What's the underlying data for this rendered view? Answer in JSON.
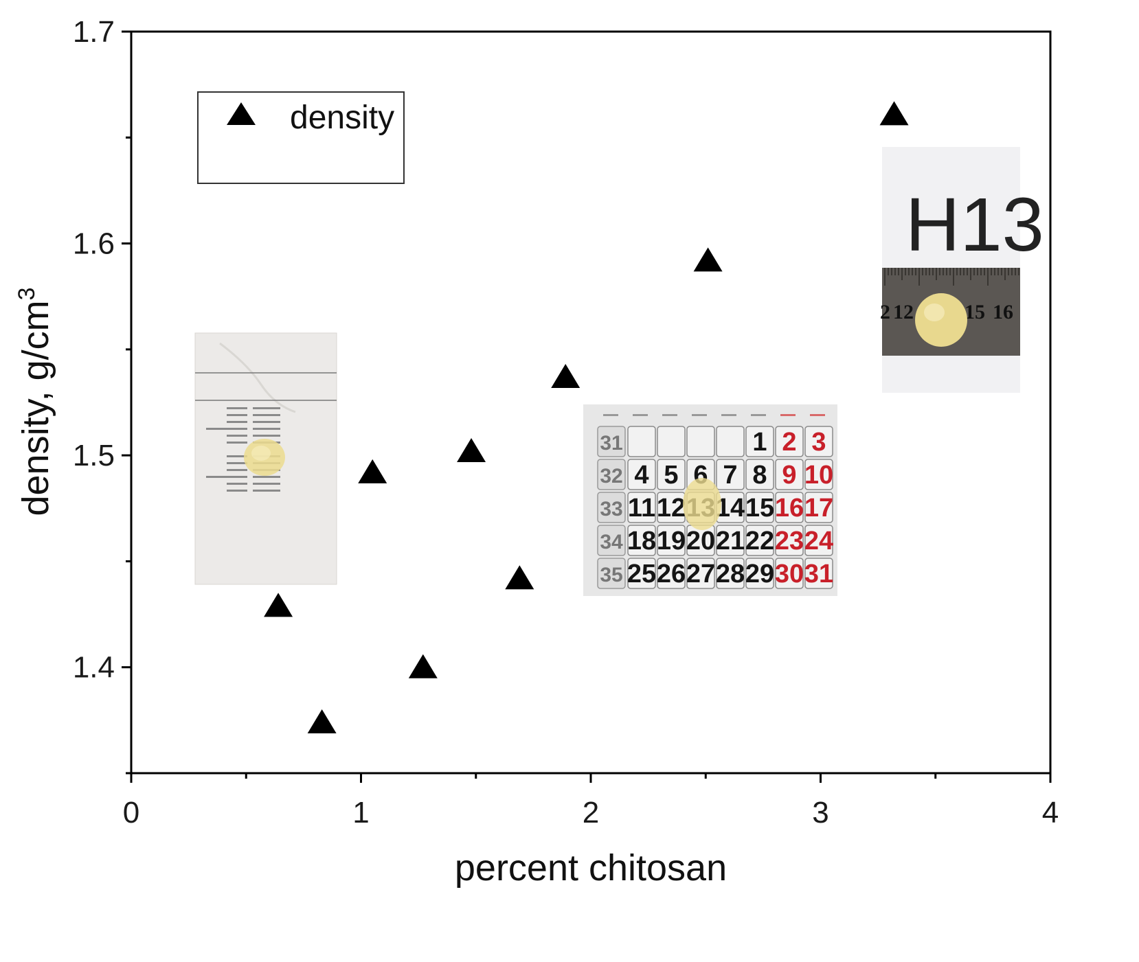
{
  "chart_data": {
    "type": "scatter",
    "title": "",
    "xlabel": "percent chitosan",
    "ylabel": "density, g/cm",
    "ylabel_superscript": "3",
    "xlim": [
      0,
      4
    ],
    "ylim": [
      1.35,
      1.7
    ],
    "x_ticks": [
      "0",
      "1",
      "2",
      "3",
      "4"
    ],
    "y_ticks": [
      "1.4",
      "1.5",
      "1.6",
      "1.7"
    ],
    "grid": false,
    "legend": {
      "position": "top-left",
      "entries": [
        "density"
      ]
    },
    "series": [
      {
        "name": "density",
        "marker": "triangle",
        "color": "#000000",
        "points": [
          {
            "x": 0.64,
            "y": 1.428
          },
          {
            "x": 0.83,
            "y": 1.373
          },
          {
            "x": 1.05,
            "y": 1.491
          },
          {
            "x": 1.27,
            "y": 1.399
          },
          {
            "x": 1.48,
            "y": 1.501
          },
          {
            "x": 1.69,
            "y": 1.441
          },
          {
            "x": 1.89,
            "y": 1.536
          },
          {
            "x": 2.51,
            "y": 1.591
          },
          {
            "x": 3.32,
            "y": 1.66
          }
        ]
      }
    ]
  },
  "inset_photos": {
    "calendar": {
      "rows": [
        {
          "week": "31",
          "days": [
            "",
            "",
            "",
            "",
            "1",
            "2",
            "3"
          ]
        },
        {
          "week": "32",
          "days": [
            "4",
            "5",
            "6",
            "7",
            "8",
            "9",
            "10"
          ]
        },
        {
          "week": "33",
          "days": [
            "11",
            "12",
            "13",
            "14",
            "15",
            "16",
            "17"
          ]
        },
        {
          "week": "34",
          "days": [
            "18",
            "19",
            "20",
            "21",
            "22",
            "23",
            "24"
          ]
        },
        {
          "week": "35",
          "days": [
            "25",
            "26",
            "27",
            "28",
            "29",
            "30",
            "31"
          ]
        }
      ],
      "weekend_color": "#c8202a"
    },
    "ruler": {
      "label": "H13",
      "numbers": [
        "2",
        "12",
        "15",
        "16"
      ]
    }
  }
}
